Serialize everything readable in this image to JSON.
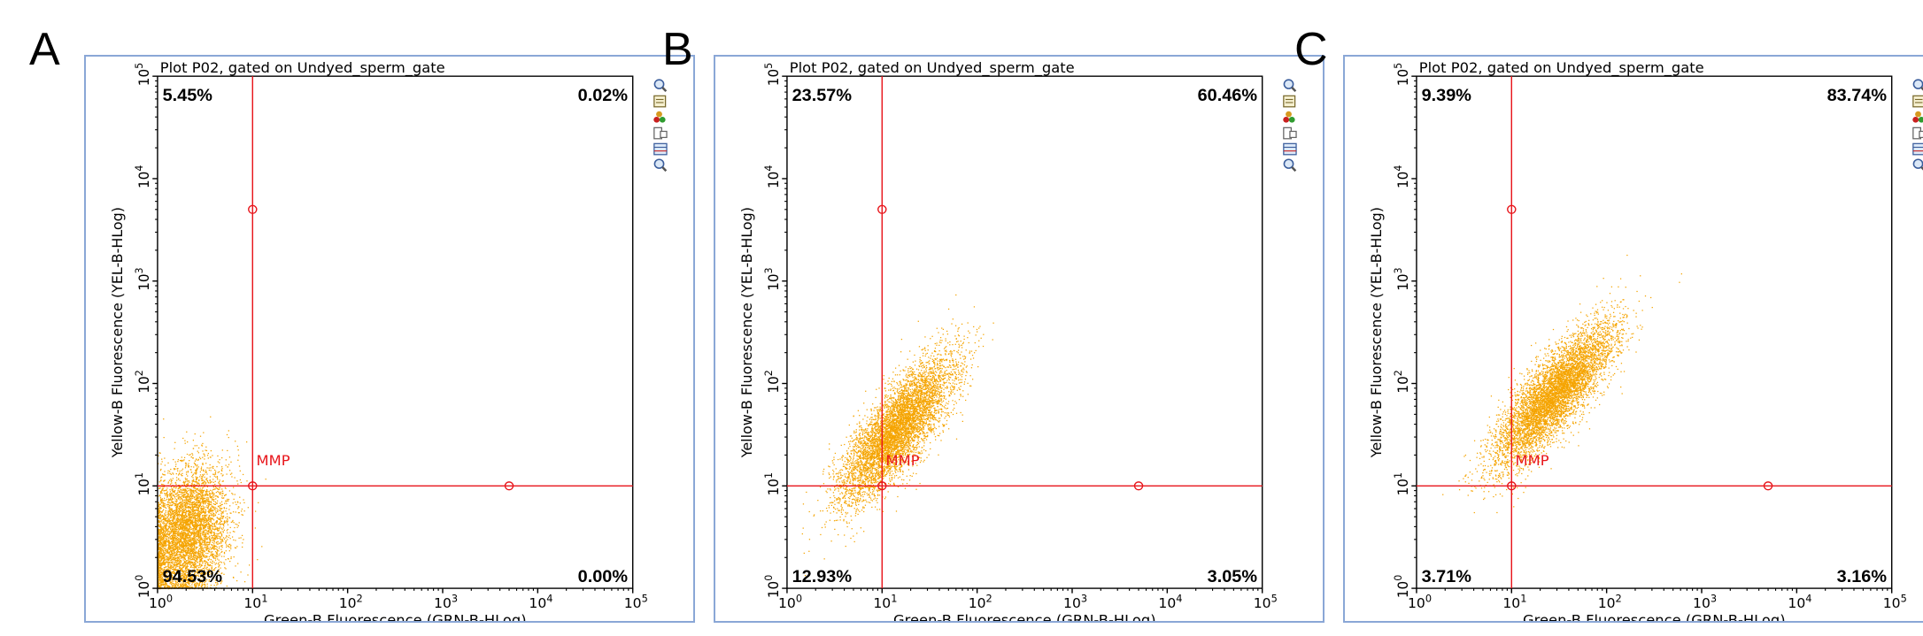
{
  "colors": {
    "dots": "#f5a400",
    "gate": "#e8151b",
    "frame": "#8aa7d6",
    "quadrant_text": "#000000"
  },
  "toolbar_icons": [
    "zoom-in-icon",
    "properties-icon",
    "color-gate-icon",
    "layout-icon",
    "statistics-icon",
    "zoom-out-icon"
  ],
  "chart_data": [
    {
      "panel": "A",
      "type": "scatter",
      "title": "Plot P02, gated on Undyed_sperm_gate",
      "xlabel": "Green-B Fluorescence (GRN-B-HLog)",
      "ylabel": "Yellow-B Fluorescence (YEL-B-HLog)",
      "x_scale": "log",
      "y_scale": "log",
      "xlim": [
        1,
        100000
      ],
      "ylim": [
        1,
        100000
      ],
      "x_ticks": [
        "10",
        "10",
        "10",
        "10",
        "10",
        "10"
      ],
      "x_tick_exp": [
        "0",
        "1",
        "2",
        "3",
        "4",
        "5"
      ],
      "y_ticks": [
        "10",
        "10",
        "10",
        "10",
        "10",
        "10"
      ],
      "y_tick_exp": [
        "0",
        "1",
        "2",
        "3",
        "4",
        "5"
      ],
      "gate": {
        "name": "MMP",
        "x": 10,
        "y": 10,
        "handles": [
          [
            10,
            5000
          ],
          [
            10,
            10
          ],
          [
            5000,
            10
          ]
        ]
      },
      "quadrants": {
        "upper_left": "5.45%",
        "upper_right": "0.02%",
        "lower_left": "94.53%",
        "lower_right": "0.00%"
      },
      "population": {
        "center_log": [
          0.3,
          0.55
        ],
        "spread_log": [
          0.22,
          0.32
        ],
        "rho": 0.25,
        "count": 5200
      }
    },
    {
      "panel": "B",
      "type": "scatter",
      "title": "Plot P02, gated on Undyed_sperm_gate",
      "xlabel": "Green-B Fluorescence (GRN-B-HLog)",
      "ylabel": "Yellow-B Fluorescence (YEL-B-HLog)",
      "x_scale": "log",
      "y_scale": "log",
      "xlim": [
        1,
        100000
      ],
      "ylim": [
        1,
        100000
      ],
      "x_ticks": [
        "10",
        "10",
        "10",
        "10",
        "10",
        "10"
      ],
      "x_tick_exp": [
        "0",
        "1",
        "2",
        "3",
        "4",
        "5"
      ],
      "y_ticks": [
        "10",
        "10",
        "10",
        "10",
        "10",
        "10"
      ],
      "y_tick_exp": [
        "0",
        "1",
        "2",
        "3",
        "4",
        "5"
      ],
      "gate": {
        "name": "MMP",
        "x": 10,
        "y": 10,
        "handles": [
          [
            10,
            5000
          ],
          [
            10,
            10
          ],
          [
            5000,
            10
          ]
        ]
      },
      "quadrants": {
        "upper_left": "23.57%",
        "upper_right": "60.46%",
        "lower_left": "12.93%",
        "lower_right": "3.05%"
      },
      "population": {
        "center_log": [
          1.15,
          1.55
        ],
        "spread_log": [
          0.3,
          0.35
        ],
        "rho": 0.8,
        "count": 6000
      }
    },
    {
      "panel": "C",
      "type": "scatter",
      "title": "Plot P02, gated on Undyed_sperm_gate",
      "xlabel": "Green-B Fluorescence (GRN-B-HLog)",
      "ylabel": "Yellow-B Fluorescence (YEL-B-HLog)",
      "x_scale": "log",
      "y_scale": "log",
      "xlim": [
        1,
        100000
      ],
      "ylim": [
        1,
        100000
      ],
      "x_ticks": [
        "10",
        "10",
        "10",
        "10",
        "10",
        "10"
      ],
      "x_tick_exp": [
        "0",
        "1",
        "2",
        "3",
        "4",
        "5"
      ],
      "y_ticks": [
        "10",
        "10",
        "10",
        "10",
        "10",
        "10"
      ],
      "y_tick_exp": [
        "0",
        "1",
        "2",
        "3",
        "4",
        "5"
      ],
      "gate": {
        "name": "MMP",
        "x": 10,
        "y": 10,
        "handles": [
          [
            10,
            5000
          ],
          [
            10,
            10
          ],
          [
            5000,
            10
          ]
        ]
      },
      "quadrants": {
        "upper_left": "9.39%",
        "upper_right": "83.74%",
        "lower_left": "3.71%",
        "lower_right": "3.16%"
      },
      "population": {
        "center_log": [
          1.45,
          1.9
        ],
        "spread_log": [
          0.32,
          0.35
        ],
        "rho": 0.82,
        "count": 6000
      }
    }
  ]
}
